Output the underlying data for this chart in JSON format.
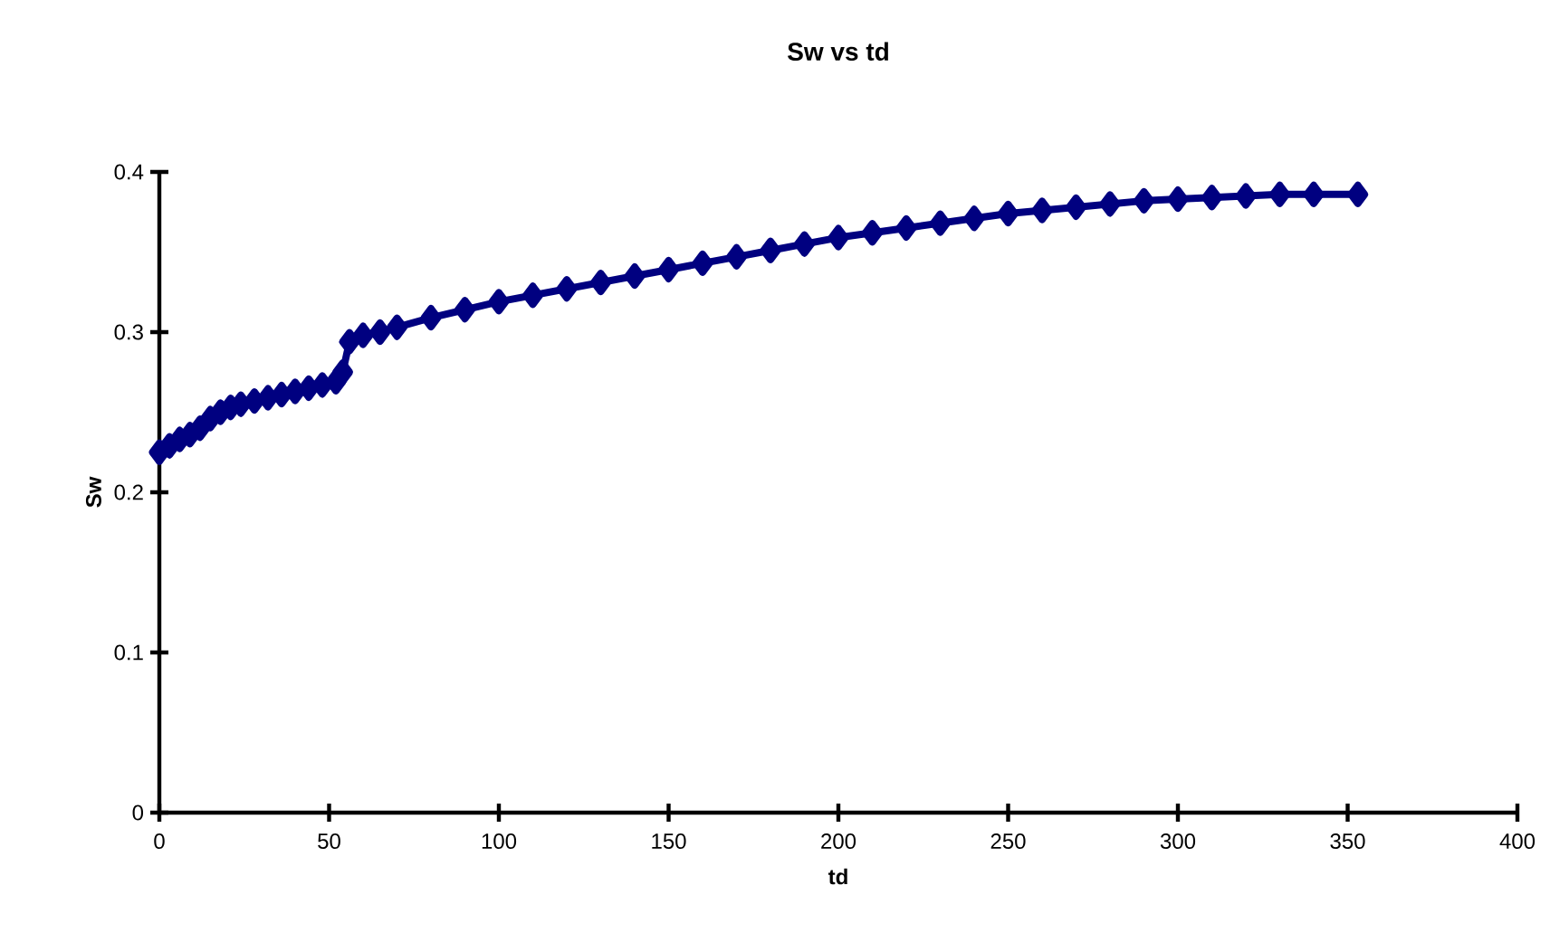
{
  "chart_data": {
    "type": "line",
    "title": "Sw vs td",
    "xlabel": "td",
    "ylabel": "Sw",
    "x": [
      0,
      3,
      6,
      9,
      12,
      15,
      18,
      21,
      24,
      28,
      32,
      36,
      40,
      44,
      48,
      52,
      54,
      56,
      60,
      65,
      70,
      80,
      90,
      100,
      110,
      120,
      130,
      140,
      150,
      160,
      170,
      180,
      190,
      200,
      210,
      220,
      230,
      240,
      250,
      260,
      270,
      280,
      290,
      300,
      310,
      320,
      330,
      340,
      353
    ],
    "series": [
      {
        "color": "#000080",
        "values": [
          0.225,
          0.229,
          0.233,
          0.236,
          0.24,
          0.246,
          0.25,
          0.253,
          0.255,
          0.257,
          0.259,
          0.261,
          0.263,
          0.265,
          0.267,
          0.269,
          0.275,
          0.294,
          0.298,
          0.3,
          0.303,
          0.309,
          0.314,
          0.319,
          0.323,
          0.327,
          0.331,
          0.335,
          0.339,
          0.343,
          0.347,
          0.351,
          0.355,
          0.359,
          0.362,
          0.365,
          0.368,
          0.371,
          0.374,
          0.376,
          0.378,
          0.38,
          0.382,
          0.383,
          0.384,
          0.385,
          0.386,
          0.386,
          0.386
        ]
      }
    ],
    "xlim": [
      0,
      400
    ],
    "xticks": [
      0,
      50,
      100,
      150,
      200,
      250,
      300,
      350,
      400
    ],
    "ylim": [
      0,
      0.4
    ],
    "yticks": [
      0,
      0.1,
      0.2,
      0.3,
      0.4
    ],
    "grid": false,
    "marker": "diamond"
  }
}
